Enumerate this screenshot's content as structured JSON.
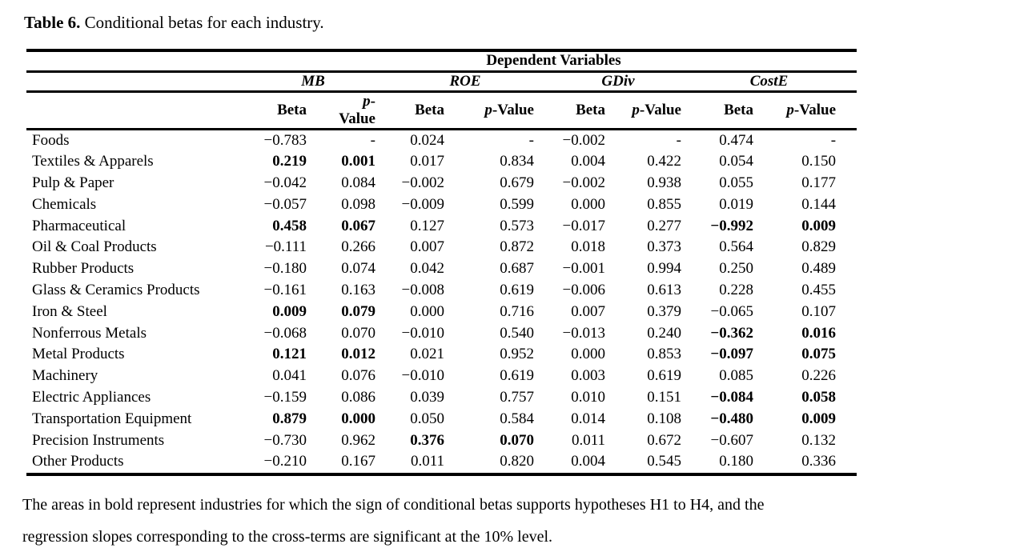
{
  "title": {
    "label": "Table 6.",
    "text": " Conditional betas for each industry."
  },
  "table": {
    "span_header": "Dependent Variables",
    "groups": [
      "MB",
      "ROE",
      "GDiv",
      "CostE"
    ],
    "beta_label": "Beta",
    "p_italic": "p",
    "p_rest": "-Value",
    "missing_marker": "-",
    "rows": [
      {
        "industry": "Foods",
        "cells": [
          {
            "v": "−0.783",
            "bold": false
          },
          {
            "v": "-",
            "bold": false
          },
          {
            "v": "0.024",
            "bold": false
          },
          {
            "v": "-",
            "bold": false
          },
          {
            "v": "−0.002",
            "bold": false
          },
          {
            "v": "-",
            "bold": false
          },
          {
            "v": "0.474",
            "bold": false
          },
          {
            "v": "-",
            "bold": false
          }
        ]
      },
      {
        "industry": "Textiles & Apparels",
        "cells": [
          {
            "v": "0.219",
            "bold": true
          },
          {
            "v": "0.001",
            "bold": true
          },
          {
            "v": "0.017",
            "bold": false
          },
          {
            "v": "0.834",
            "bold": false
          },
          {
            "v": "0.004",
            "bold": false
          },
          {
            "v": "0.422",
            "bold": false
          },
          {
            "v": "0.054",
            "bold": false
          },
          {
            "v": "0.150",
            "bold": false
          }
        ]
      },
      {
        "industry": "Pulp & Paper",
        "cells": [
          {
            "v": "−0.042",
            "bold": false
          },
          {
            "v": "0.084",
            "bold": false
          },
          {
            "v": "−0.002",
            "bold": false
          },
          {
            "v": "0.679",
            "bold": false
          },
          {
            "v": "−0.002",
            "bold": false
          },
          {
            "v": "0.938",
            "bold": false
          },
          {
            "v": "0.055",
            "bold": false
          },
          {
            "v": "0.177",
            "bold": false
          }
        ]
      },
      {
        "industry": "Chemicals",
        "cells": [
          {
            "v": "−0.057",
            "bold": false
          },
          {
            "v": "0.098",
            "bold": false
          },
          {
            "v": "−0.009",
            "bold": false
          },
          {
            "v": "0.599",
            "bold": false
          },
          {
            "v": "0.000",
            "bold": false
          },
          {
            "v": "0.855",
            "bold": false
          },
          {
            "v": "0.019",
            "bold": false
          },
          {
            "v": "0.144",
            "bold": false
          }
        ]
      },
      {
        "industry": "Pharmaceutical",
        "cells": [
          {
            "v": "0.458",
            "bold": true
          },
          {
            "v": "0.067",
            "bold": true
          },
          {
            "v": "0.127",
            "bold": false
          },
          {
            "v": "0.573",
            "bold": false
          },
          {
            "v": "−0.017",
            "bold": false
          },
          {
            "v": "0.277",
            "bold": false
          },
          {
            "v": "−0.992",
            "bold": true
          },
          {
            "v": "0.009",
            "bold": true
          }
        ]
      },
      {
        "industry": "Oil & Coal Products",
        "cells": [
          {
            "v": "−0.111",
            "bold": false
          },
          {
            "v": "0.266",
            "bold": false
          },
          {
            "v": "0.007",
            "bold": false
          },
          {
            "v": "0.872",
            "bold": false
          },
          {
            "v": "0.018",
            "bold": false
          },
          {
            "v": "0.373",
            "bold": false
          },
          {
            "v": "0.564",
            "bold": false
          },
          {
            "v": "0.829",
            "bold": false
          }
        ]
      },
      {
        "industry": "Rubber Products",
        "cells": [
          {
            "v": "−0.180",
            "bold": false
          },
          {
            "v": "0.074",
            "bold": false
          },
          {
            "v": "0.042",
            "bold": false
          },
          {
            "v": "0.687",
            "bold": false
          },
          {
            "v": "−0.001",
            "bold": false
          },
          {
            "v": "0.994",
            "bold": false
          },
          {
            "v": "0.250",
            "bold": false
          },
          {
            "v": "0.489",
            "bold": false
          }
        ]
      },
      {
        "industry": "Glass & Ceramics Products",
        "cells": [
          {
            "v": "−0.161",
            "bold": false
          },
          {
            "v": "0.163",
            "bold": false
          },
          {
            "v": "−0.008",
            "bold": false
          },
          {
            "v": "0.619",
            "bold": false
          },
          {
            "v": "−0.006",
            "bold": false
          },
          {
            "v": "0.613",
            "bold": false
          },
          {
            "v": "0.228",
            "bold": false
          },
          {
            "v": "0.455",
            "bold": false
          }
        ]
      },
      {
        "industry": "Iron & Steel",
        "cells": [
          {
            "v": "0.009",
            "bold": true
          },
          {
            "v": "0.079",
            "bold": true
          },
          {
            "v": "0.000",
            "bold": false
          },
          {
            "v": "0.716",
            "bold": false
          },
          {
            "v": "0.007",
            "bold": false
          },
          {
            "v": "0.379",
            "bold": false
          },
          {
            "v": "−0.065",
            "bold": false
          },
          {
            "v": "0.107",
            "bold": false
          }
        ]
      },
      {
        "industry": "Nonferrous Metals",
        "cells": [
          {
            "v": "−0.068",
            "bold": false
          },
          {
            "v": "0.070",
            "bold": false
          },
          {
            "v": "−0.010",
            "bold": false
          },
          {
            "v": "0.540",
            "bold": false
          },
          {
            "v": "−0.013",
            "bold": false
          },
          {
            "v": "0.240",
            "bold": false
          },
          {
            "v": "−0.362",
            "bold": true
          },
          {
            "v": "0.016",
            "bold": true
          }
        ]
      },
      {
        "industry": "Metal Products",
        "cells": [
          {
            "v": "0.121",
            "bold": true
          },
          {
            "v": "0.012",
            "bold": true
          },
          {
            "v": "0.021",
            "bold": false
          },
          {
            "v": "0.952",
            "bold": false
          },
          {
            "v": "0.000",
            "bold": false
          },
          {
            "v": "0.853",
            "bold": false
          },
          {
            "v": "−0.097",
            "bold": true
          },
          {
            "v": "0.075",
            "bold": true
          }
        ]
      },
      {
        "industry": "Machinery",
        "cells": [
          {
            "v": "0.041",
            "bold": false
          },
          {
            "v": "0.076",
            "bold": false
          },
          {
            "v": "−0.010",
            "bold": false
          },
          {
            "v": "0.619",
            "bold": false
          },
          {
            "v": "0.003",
            "bold": false
          },
          {
            "v": "0.619",
            "bold": false
          },
          {
            "v": "0.085",
            "bold": false
          },
          {
            "v": "0.226",
            "bold": false
          }
        ]
      },
      {
        "industry": "Electric Appliances",
        "cells": [
          {
            "v": "−0.159",
            "bold": false
          },
          {
            "v": "0.086",
            "bold": false
          },
          {
            "v": "0.039",
            "bold": false
          },
          {
            "v": "0.757",
            "bold": false
          },
          {
            "v": "0.010",
            "bold": false
          },
          {
            "v": "0.151",
            "bold": false
          },
          {
            "v": "−0.084",
            "bold": true
          },
          {
            "v": "0.058",
            "bold": true
          }
        ]
      },
      {
        "industry": "Transportation Equipment",
        "cells": [
          {
            "v": "0.879",
            "bold": true
          },
          {
            "v": "0.000",
            "bold": true
          },
          {
            "v": "0.050",
            "bold": false
          },
          {
            "v": "0.584",
            "bold": false
          },
          {
            "v": "0.014",
            "bold": false
          },
          {
            "v": "0.108",
            "bold": false
          },
          {
            "v": "−0.480",
            "bold": true
          },
          {
            "v": "0.009",
            "bold": true
          }
        ]
      },
      {
        "industry": "Precision Instruments",
        "cells": [
          {
            "v": "−0.730",
            "bold": false
          },
          {
            "v": "0.962",
            "bold": false
          },
          {
            "v": "0.376",
            "bold": true
          },
          {
            "v": "0.070",
            "bold": true
          },
          {
            "v": "0.011",
            "bold": false
          },
          {
            "v": "0.672",
            "bold": false
          },
          {
            "v": "−0.607",
            "bold": false
          },
          {
            "v": "0.132",
            "bold": false
          }
        ]
      },
      {
        "industry": "Other Products",
        "cells": [
          {
            "v": "−0.210",
            "bold": false
          },
          {
            "v": "0.167",
            "bold": false
          },
          {
            "v": "0.011",
            "bold": false
          },
          {
            "v": "0.820",
            "bold": false
          },
          {
            "v": "0.004",
            "bold": false
          },
          {
            "v": "0.545",
            "bold": false
          },
          {
            "v": "0.180",
            "bold": false
          },
          {
            "v": "0.336",
            "bold": false
          }
        ]
      }
    ]
  },
  "footnote": {
    "line1": "The areas in bold represent industries for which the sign of conditional betas supports hypotheses H1 to H4, and the",
    "line2": "regression slopes corresponding to the cross-terms are significant at the 10% level."
  }
}
